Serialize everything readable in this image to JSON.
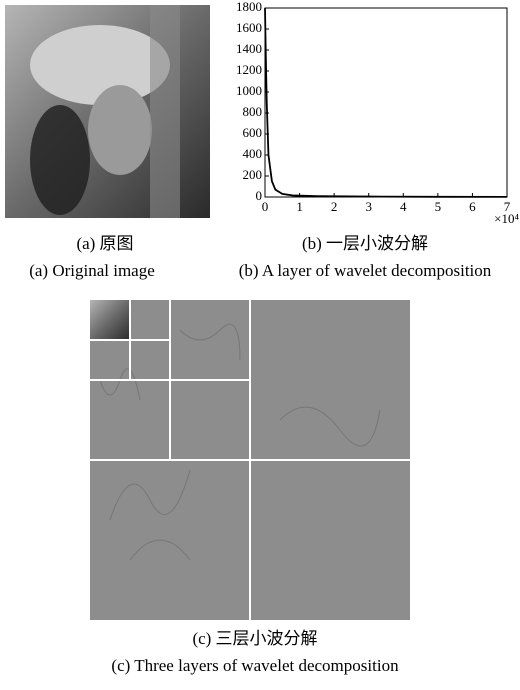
{
  "panel_a": {
    "caption_cn": "(a) 原图",
    "caption_en": "(a) Original image"
  },
  "panel_b": {
    "caption_cn": "(b) 一层小波分解",
    "caption_en": "(b) A layer of wavelet decomposition"
  },
  "panel_c": {
    "caption_cn": "(c) 三层小波分解",
    "caption_en": "(c) Three layers of wavelet decomposition"
  },
  "chart_data": {
    "type": "line",
    "x": [
      0,
      200,
      500,
      1000,
      2000,
      3000,
      5000,
      8000,
      15000,
      30000,
      50000,
      70000
    ],
    "values": [
      1800,
      1400,
      900,
      400,
      150,
      70,
      30,
      15,
      8,
      4,
      2,
      1
    ],
    "color": "#000000",
    "xlim": [
      0,
      70000
    ],
    "ylim": [
      0,
      1800
    ],
    "xticks": [
      {
        "value": 0,
        "label": "0"
      },
      {
        "value": 10000,
        "label": "1"
      },
      {
        "value": 20000,
        "label": "2"
      },
      {
        "value": 30000,
        "label": "3"
      },
      {
        "value": 40000,
        "label": "4"
      },
      {
        "value": 50000,
        "label": "5"
      },
      {
        "value": 60000,
        "label": "6"
      },
      {
        "value": 70000,
        "label": "7"
      }
    ],
    "yticks": [
      0,
      200,
      400,
      600,
      800,
      1000,
      1200,
      1400,
      1600,
      1800
    ],
    "x_multiplier": "×10⁴",
    "grid": false
  }
}
